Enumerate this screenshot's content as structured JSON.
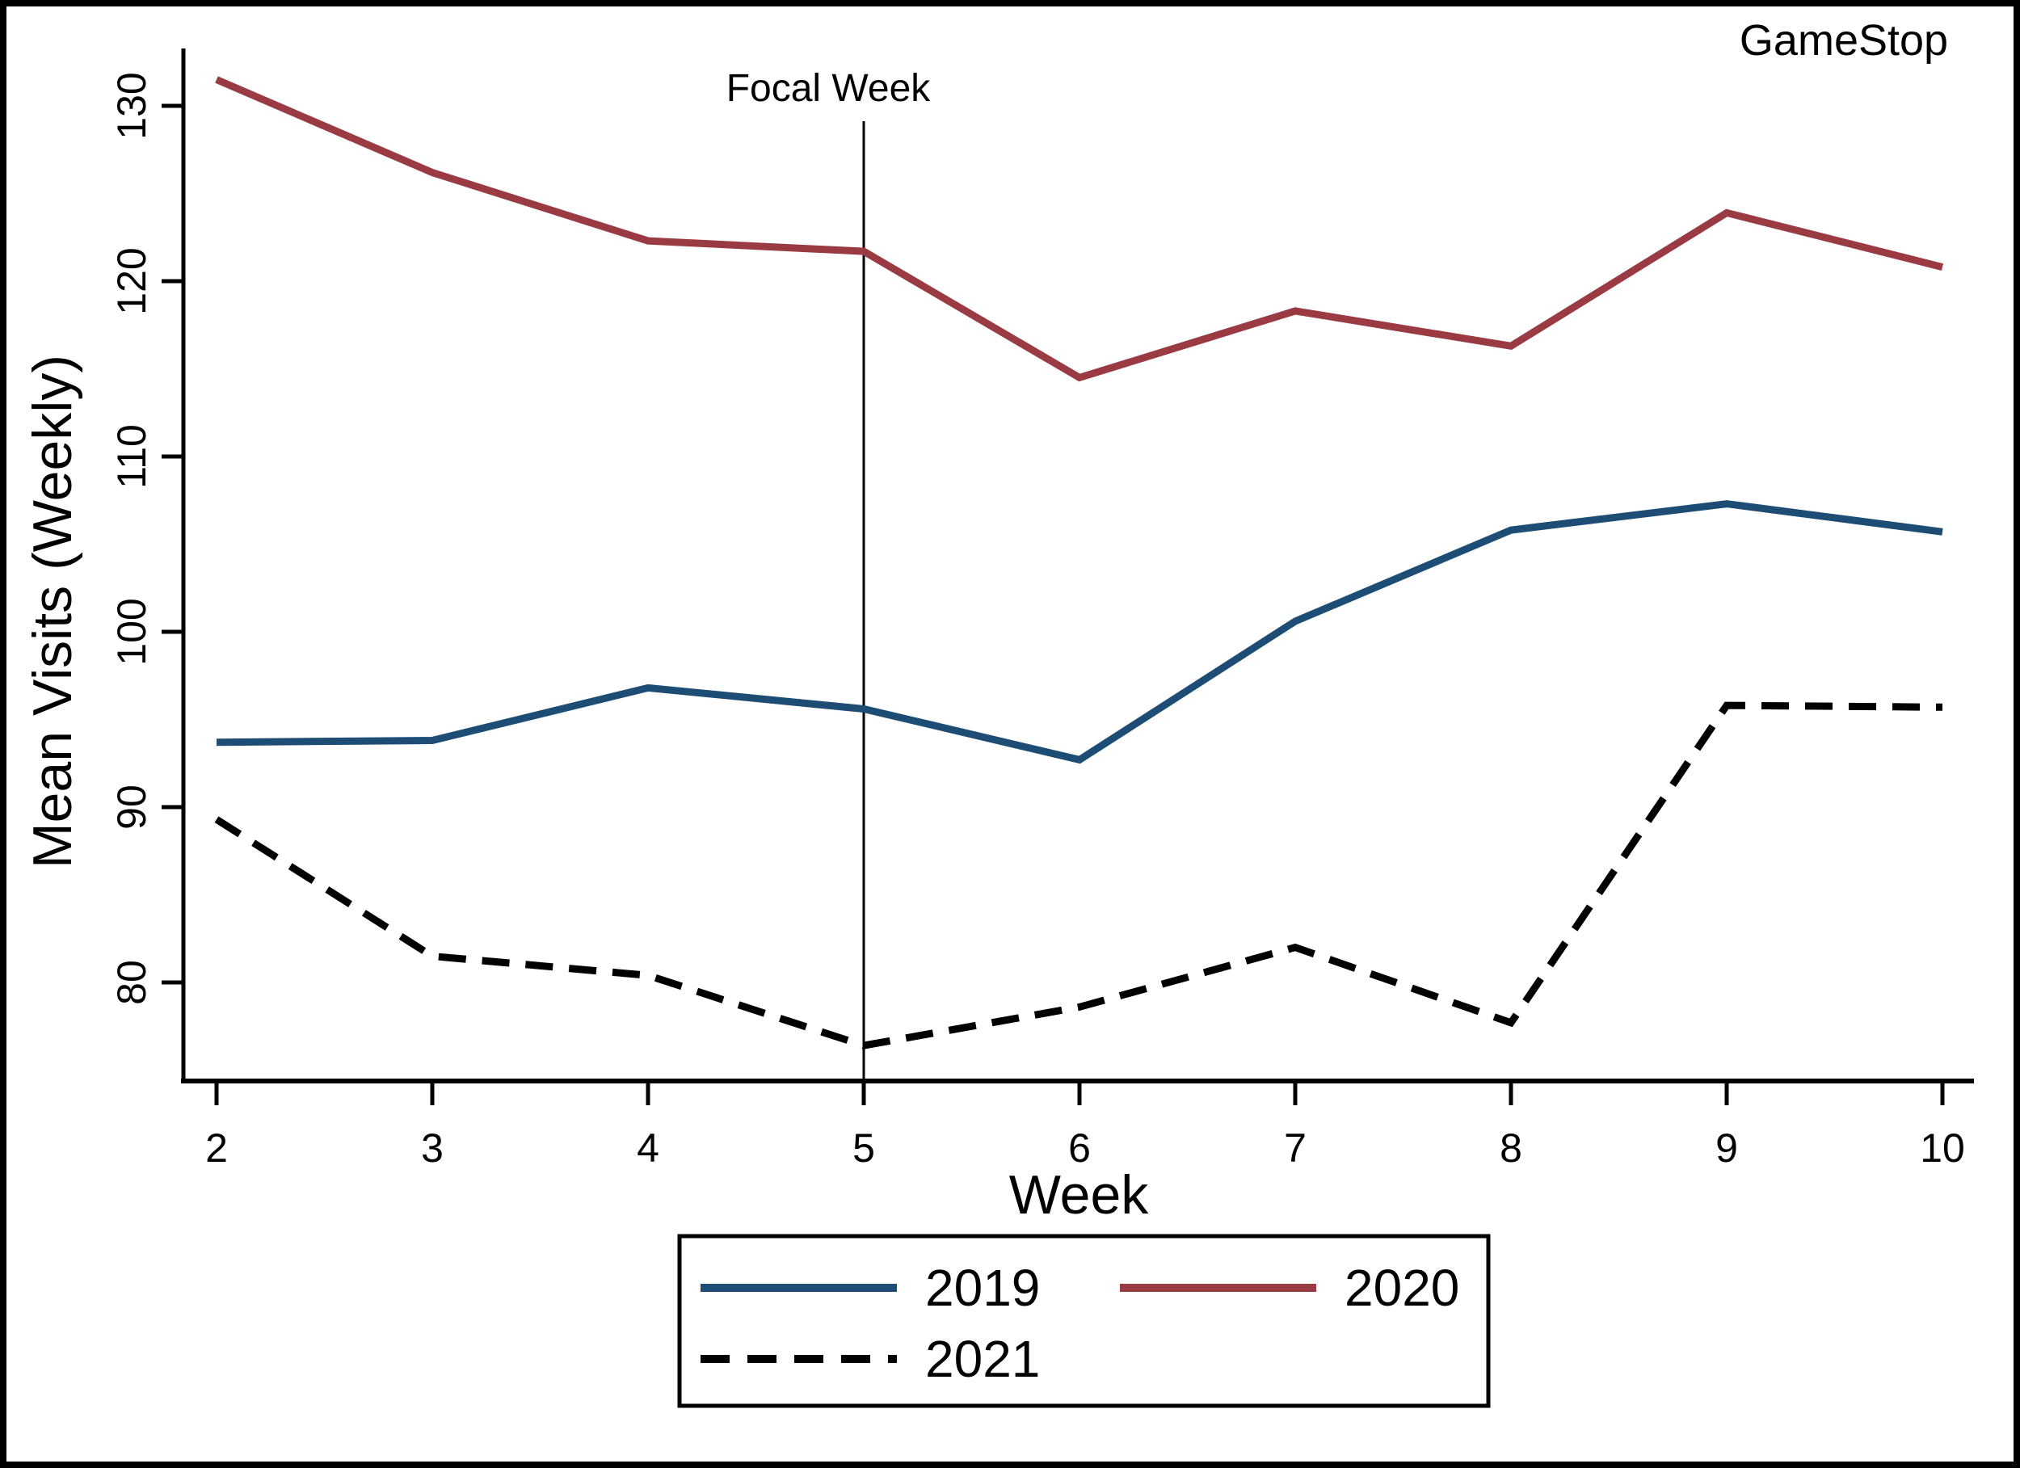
{
  "chart_data": {
    "type": "line",
    "title": "GameStop",
    "annotation": "Focal Week",
    "focal_week": 5,
    "xlabel": "Week",
    "ylabel": "Mean Visits (Weekly)",
    "x": [
      2,
      3,
      4,
      5,
      6,
      7,
      8,
      9,
      10
    ],
    "x_ticks": [
      "2",
      "3",
      "4",
      "5",
      "6",
      "7",
      "8",
      "9",
      "10"
    ],
    "y_ticks": [
      "80",
      "90",
      "100",
      "110",
      "120",
      "130"
    ],
    "y_tick_values": [
      80,
      90,
      100,
      110,
      120,
      130
    ],
    "ylim": [
      74.3,
      133.0
    ],
    "xlim": [
      1.85,
      10.15
    ],
    "grid": false,
    "legend_position": "bottom-box",
    "series": [
      {
        "name": "2019",
        "color": "#1d4d74",
        "style": "solid",
        "values": [
          93.7,
          93.8,
          96.8,
          95.6,
          92.7,
          100.6,
          105.8,
          107.3,
          105.7
        ]
      },
      {
        "name": "2020",
        "color": "#9a3b44",
        "style": "solid",
        "values": [
          131.5,
          126.2,
          122.3,
          121.7,
          114.5,
          118.3,
          116.3,
          123.9,
          120.8
        ]
      },
      {
        "name": "2021",
        "color": "#000000",
        "style": "dashed",
        "values": [
          89.3,
          81.5,
          80.4,
          76.4,
          78.6,
          82.0,
          77.7,
          95.8,
          95.7
        ]
      }
    ]
  }
}
